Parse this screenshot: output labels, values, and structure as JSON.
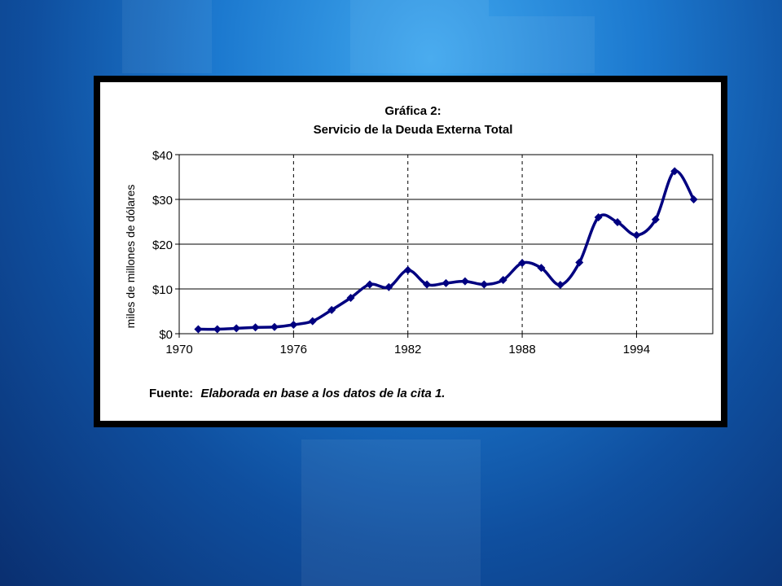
{
  "slide": {
    "background_color": "#1c79cf",
    "frame_color": "#000000"
  },
  "chart_data": {
    "type": "line",
    "title": "Gráfica 2:",
    "subtitle": "Servicio de la Deuda Externa Total",
    "ylabel": "miles de millones de dólares",
    "xlabel": "",
    "xlim": [
      1970,
      1998
    ],
    "ylim": [
      0,
      40
    ],
    "x_ticks": [
      1970,
      1976,
      1982,
      1988,
      1994
    ],
    "y_ticks": [
      0,
      10,
      20,
      30,
      40
    ],
    "y_tick_labels": [
      "$0",
      "$10",
      "$20",
      "$30",
      "$40"
    ],
    "grid": {
      "horizontal": "solid",
      "vertical": "dashed"
    },
    "line_color": "#000080",
    "series": [
      {
        "x": [
          1971,
          1972,
          1973,
          1974,
          1975,
          1976,
          1977,
          1978,
          1979,
          1980,
          1981,
          1982,
          1983,
          1984,
          1985,
          1986,
          1987,
          1988,
          1989,
          1990,
          1991,
          1992,
          1993,
          1994,
          1995,
          1996,
          1997
        ],
        "values": [
          1.0,
          1.0,
          1.2,
          1.4,
          1.5,
          2.0,
          2.8,
          5.3,
          8.0,
          11.0,
          10.4,
          14.2,
          11.0,
          11.3,
          11.7,
          11.0,
          12.0,
          15.8,
          14.7,
          10.9,
          15.9,
          26.0,
          24.9,
          22.0,
          25.5,
          36.3,
          30.0
        ]
      }
    ],
    "source_label": "Fuente:",
    "source_text": "Elaborada en base a los datos de la cita 1."
  }
}
